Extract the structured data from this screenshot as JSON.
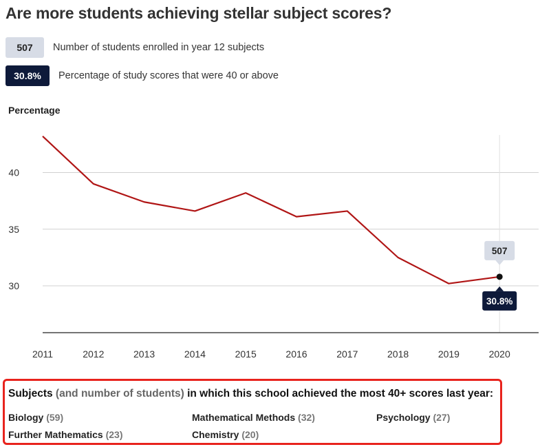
{
  "title": "Are more students achieving stellar subject scores?",
  "legend": [
    {
      "badge": "507",
      "text": "Number of students enrolled in year 12 subjects",
      "style": "light"
    },
    {
      "badge": "30.8%",
      "text": "Percentage of study scores that were 40 or above",
      "style": "dark"
    }
  ],
  "colors": {
    "line": "#b01515",
    "badge_light": "#d7dce6",
    "badge_dark": "#0e1a3a",
    "grid": "#d0d0d0",
    "highlight_border": "#e8231d"
  },
  "chart_data": {
    "type": "line",
    "ylabel": "Percentage",
    "xlabel": "",
    "x": [
      "2011",
      "2012",
      "2013",
      "2014",
      "2015",
      "2016",
      "2017",
      "2018",
      "2019",
      "2020"
    ],
    "series": [
      {
        "values": [
          43.2,
          39.0,
          37.4,
          36.6,
          38.2,
          36.1,
          36.6,
          32.5,
          30.2,
          30.8
        ]
      }
    ],
    "yticks": [
      30,
      35,
      40
    ],
    "grid": true,
    "callout": {
      "x": "2020",
      "top_label": "507",
      "bottom_label": "30.8%"
    }
  },
  "subjects": {
    "title_main": "Subjects",
    "title_paren": "(and number of students)",
    "title_rest": "in which this school achieved the most 40+ scores last year:",
    "items": [
      {
        "name": "Biology",
        "count": "(59)"
      },
      {
        "name": "Mathematical Methods",
        "count": "(32)"
      },
      {
        "name": "Psychology",
        "count": "(27)"
      },
      {
        "name": "Further Mathematics",
        "count": "(23)"
      },
      {
        "name": "Chemistry",
        "count": "(20)"
      }
    ]
  }
}
